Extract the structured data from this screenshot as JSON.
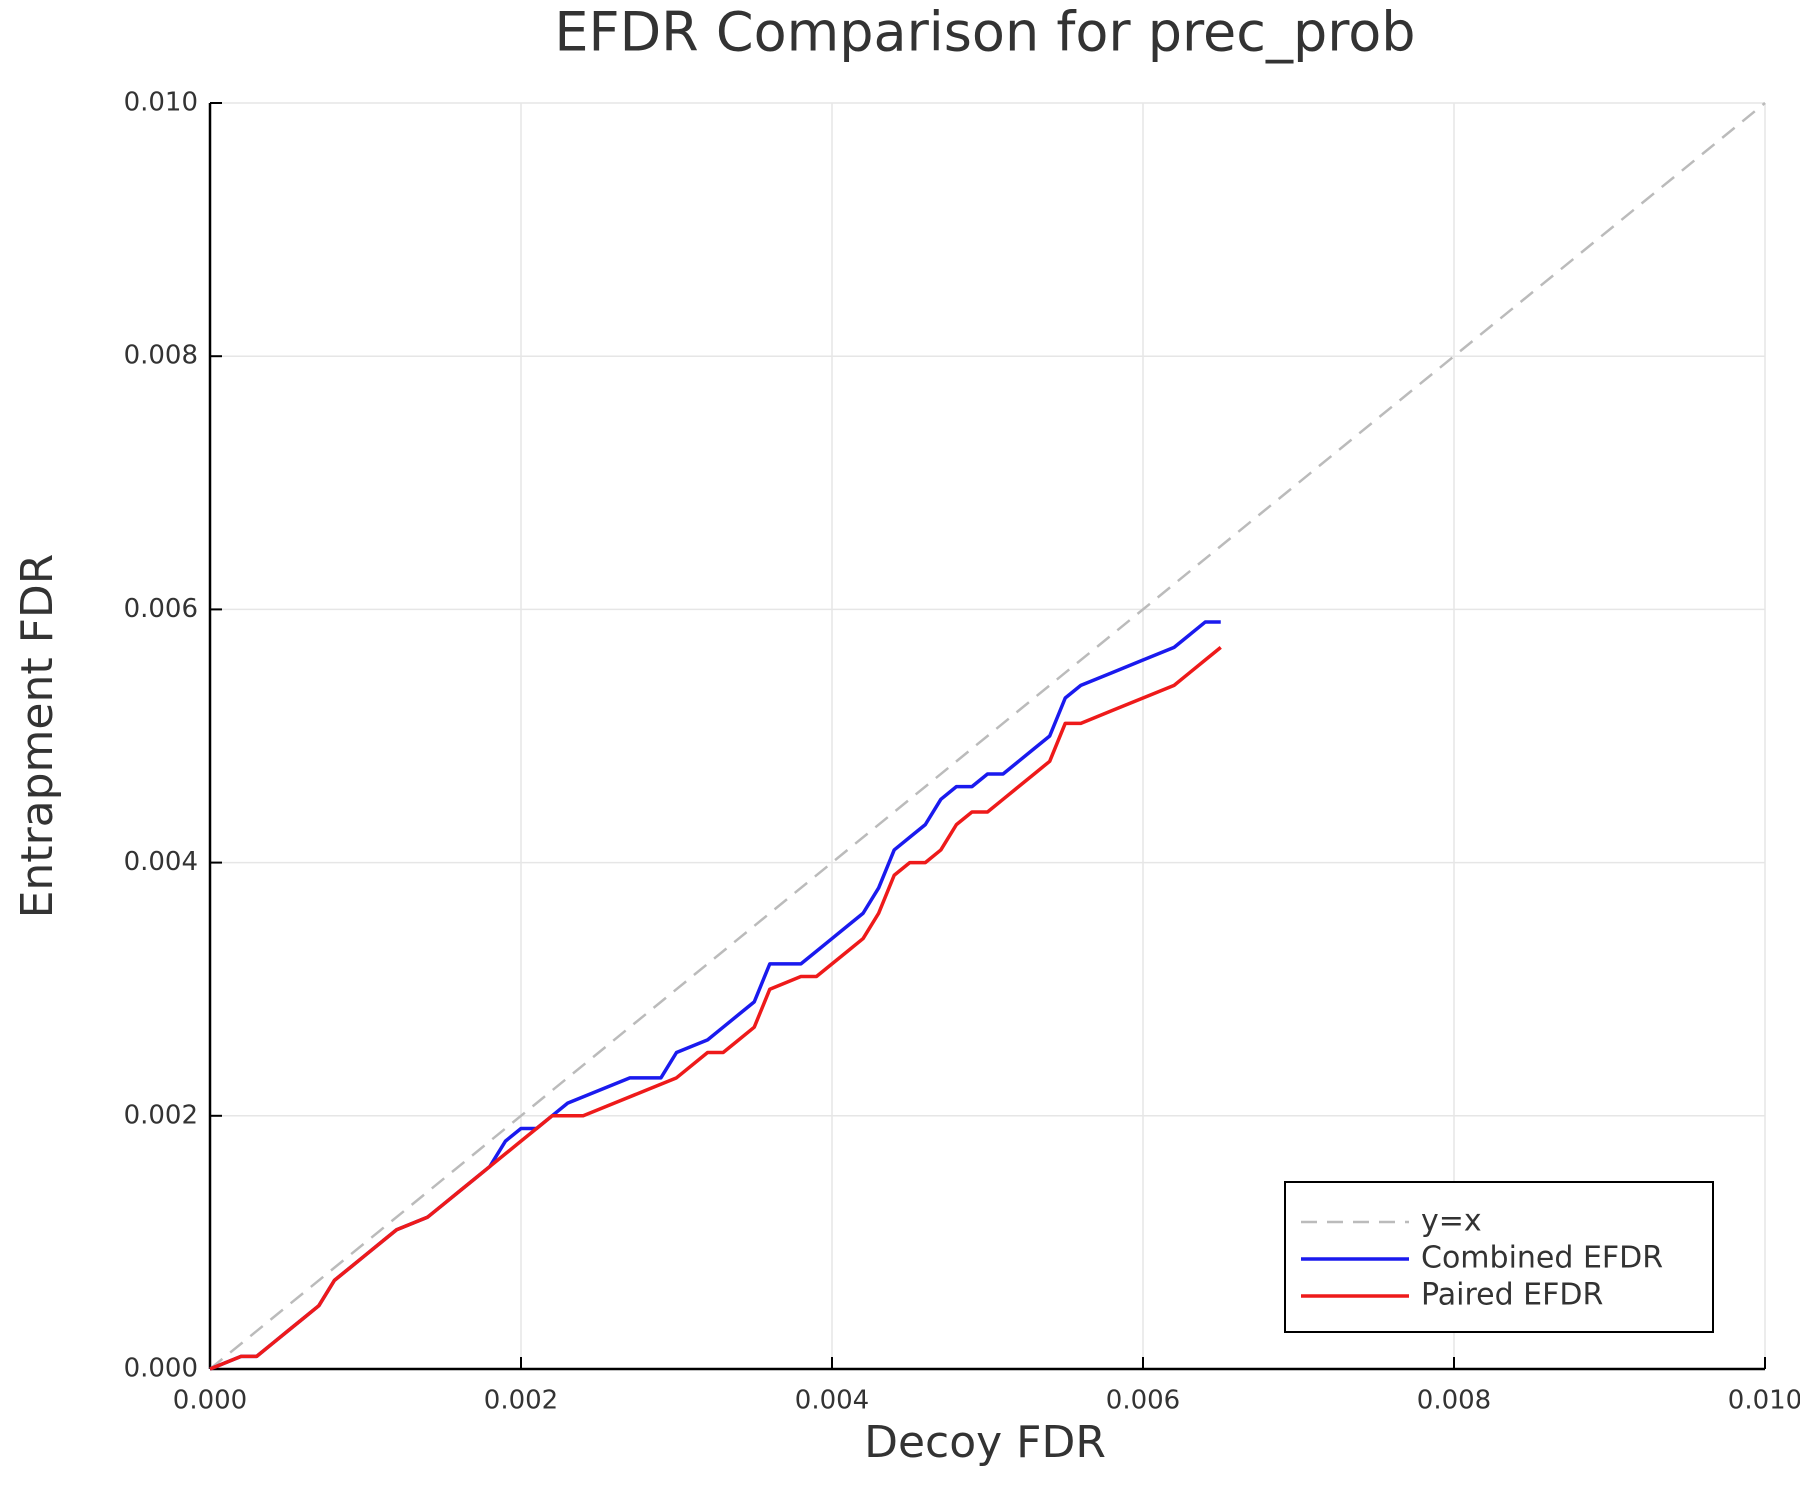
{
  "chart_data": {
    "type": "line",
    "title": "EFDR Comparison for prec_prob",
    "x_label": "Decoy FDR",
    "y_label": "Entrapment FDR",
    "xlim": [
      0,
      0.01
    ],
    "ylim": [
      0,
      0.01
    ],
    "xticks": [
      {
        "value": 0,
        "label": "0.000"
      },
      {
        "value": 0.002,
        "label": "0.002"
      },
      {
        "value": 0.004,
        "label": "0.004"
      },
      {
        "value": 0.006,
        "label": "0.006"
      },
      {
        "value": 0.008,
        "label": "0.008"
      },
      {
        "value": 0.01,
        "label": "0.010"
      }
    ],
    "yticks": [
      {
        "value": 0,
        "label": "0.000"
      },
      {
        "value": 0.002,
        "label": "0.002"
      },
      {
        "value": 0.004,
        "label": "0.004"
      },
      {
        "value": 0.006,
        "label": "0.006"
      },
      {
        "value": 0.008,
        "label": "0.008"
      },
      {
        "value": 0.01,
        "label": "0.010"
      }
    ],
    "grid": true,
    "legend": "bottom-right",
    "series": [
      {
        "name": "y=x",
        "color": "#bbbbbb",
        "dashed": true,
        "x": [
          0,
          0.01
        ],
        "values": [
          0,
          0.01
        ]
      },
      {
        "name": "Combined EFDR",
        "color": "#1a1aee",
        "dashed": false,
        "x": [
          0,
          0.0002,
          0.0003,
          0.0004,
          0.0005,
          0.0006,
          0.0007,
          0.0008,
          0.0009,
          0.001,
          0.0011,
          0.0012,
          0.0014,
          0.0015,
          0.0016,
          0.0017,
          0.0018,
          0.0019,
          0.002,
          0.0021,
          0.0022,
          0.0023,
          0.0025,
          0.0027,
          0.0029,
          0.003,
          0.0032,
          0.0033,
          0.0034,
          0.0035,
          0.0036,
          0.0038,
          0.0039,
          0.004,
          0.0041,
          0.0042,
          0.0043,
          0.0044,
          0.0045,
          0.0046,
          0.0047,
          0.0048,
          0.0049,
          0.005,
          0.0051,
          0.0052,
          0.0053,
          0.0054,
          0.0055,
          0.0056,
          0.0058,
          0.006,
          0.0062,
          0.0063,
          0.0064,
          0.0065
        ],
        "values": [
          0,
          0.0001,
          0.0001,
          0.0002,
          0.0003,
          0.0004,
          0.0005,
          0.0007,
          0.0008,
          0.0009,
          0.001,
          0.0011,
          0.0012,
          0.0013,
          0.0014,
          0.0015,
          0.0016,
          0.0018,
          0.0019,
          0.0019,
          0.002,
          0.0021,
          0.0022,
          0.0023,
          0.0023,
          0.0025,
          0.0026,
          0.0027,
          0.0028,
          0.0029,
          0.0032,
          0.0032,
          0.0033,
          0.0034,
          0.0035,
          0.0036,
          0.0038,
          0.0041,
          0.0042,
          0.0043,
          0.0045,
          0.0046,
          0.0046,
          0.0047,
          0.0047,
          0.0048,
          0.0049,
          0.005,
          0.0053,
          0.0054,
          0.0055,
          0.0056,
          0.0057,
          0.0058,
          0.0059,
          0.0059
        ]
      },
      {
        "name": "Paired EFDR",
        "color": "#ee1a1a",
        "dashed": false,
        "x": [
          0,
          0.0002,
          0.0003,
          0.0004,
          0.0005,
          0.0006,
          0.0007,
          0.0008,
          0.0009,
          0.001,
          0.0011,
          0.0012,
          0.0014,
          0.0015,
          0.0016,
          0.0017,
          0.0018,
          0.0019,
          0.002,
          0.0021,
          0.0022,
          0.0024,
          0.0026,
          0.0028,
          0.003,
          0.0032,
          0.0033,
          0.0034,
          0.0035,
          0.0036,
          0.0038,
          0.0039,
          0.004,
          0.0041,
          0.0042,
          0.0043,
          0.0044,
          0.0045,
          0.0046,
          0.0047,
          0.0048,
          0.0049,
          0.005,
          0.0051,
          0.0052,
          0.0053,
          0.0054,
          0.0055,
          0.0056,
          0.0058,
          0.006,
          0.0062,
          0.0063,
          0.0064,
          0.0065
        ],
        "values": [
          0,
          0.0001,
          0.0001,
          0.0002,
          0.0003,
          0.0004,
          0.0005,
          0.0007,
          0.0008,
          0.0009,
          0.001,
          0.0011,
          0.0012,
          0.0013,
          0.0014,
          0.0015,
          0.0016,
          0.0017,
          0.0018,
          0.0019,
          0.002,
          0.002,
          0.0021,
          0.0022,
          0.0023,
          0.0025,
          0.0025,
          0.0026,
          0.0027,
          0.003,
          0.0031,
          0.0031,
          0.0032,
          0.0033,
          0.0034,
          0.0036,
          0.0039,
          0.004,
          0.004,
          0.0041,
          0.0043,
          0.0044,
          0.0044,
          0.0045,
          0.0046,
          0.0047,
          0.0048,
          0.0051,
          0.0051,
          0.0052,
          0.0053,
          0.0054,
          0.0055,
          0.0056,
          0.0057
        ]
      }
    ]
  }
}
